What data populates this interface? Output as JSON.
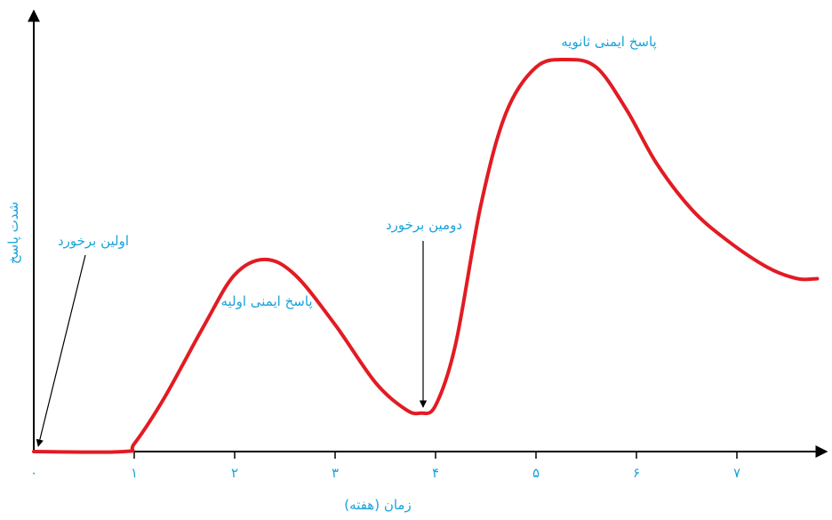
{
  "colors": {
    "curve": "#e21b23",
    "axis": "#000000",
    "text": "#1aa3d9"
  },
  "chart_data": {
    "type": "line",
    "title": "",
    "xlabel": "زمان (هفته)",
    "ylabel": "شدت پاسخ",
    "x_ticks": [
      {
        "value": 0,
        "label": "۰"
      },
      {
        "value": 1,
        "label": "۱"
      },
      {
        "value": 2,
        "label": "۲"
      },
      {
        "value": 3,
        "label": "۳"
      },
      {
        "value": 4,
        "label": "۴"
      },
      {
        "value": 5,
        "label": "۵"
      },
      {
        "value": 6,
        "label": "۶"
      },
      {
        "value": 7,
        "label": "۷"
      }
    ],
    "xlim": [
      0,
      8.2
    ],
    "ylim": [
      0,
      10
    ],
    "y_ticks": [],
    "grid": false,
    "series": [
      {
        "x": [
          0,
          0.9,
          1.0,
          1.3,
          1.7,
          2.0,
          2.3,
          2.6,
          3.0,
          3.4,
          3.7,
          3.85,
          4.0,
          4.2,
          4.45,
          4.7,
          5.0,
          5.3,
          5.6,
          5.9,
          6.2,
          6.55,
          6.9,
          7.3,
          7.6,
          7.8
        ],
        "y": [
          0,
          0,
          0.2,
          1.4,
          3.3,
          4.6,
          5.0,
          4.6,
          3.3,
          1.8,
          1.1,
          1.0,
          1.2,
          2.8,
          6.4,
          8.8,
          10.0,
          10.2,
          10.0,
          8.9,
          7.5,
          6.3,
          5.5,
          4.8,
          4.5,
          4.5
        ]
      }
    ],
    "annotations": [
      {
        "text": "اولین برخورد",
        "x": 0,
        "y": 0
      },
      {
        "text": "پاسخ ایمنی اولیه",
        "x": 2.3,
        "y": 5.0
      },
      {
        "text": "دومین برخورد",
        "x": 3.85,
        "y": 1.0
      },
      {
        "text": "پاسخ ایمنی ثانویه",
        "x": 5.3,
        "y": 10.2
      }
    ]
  }
}
